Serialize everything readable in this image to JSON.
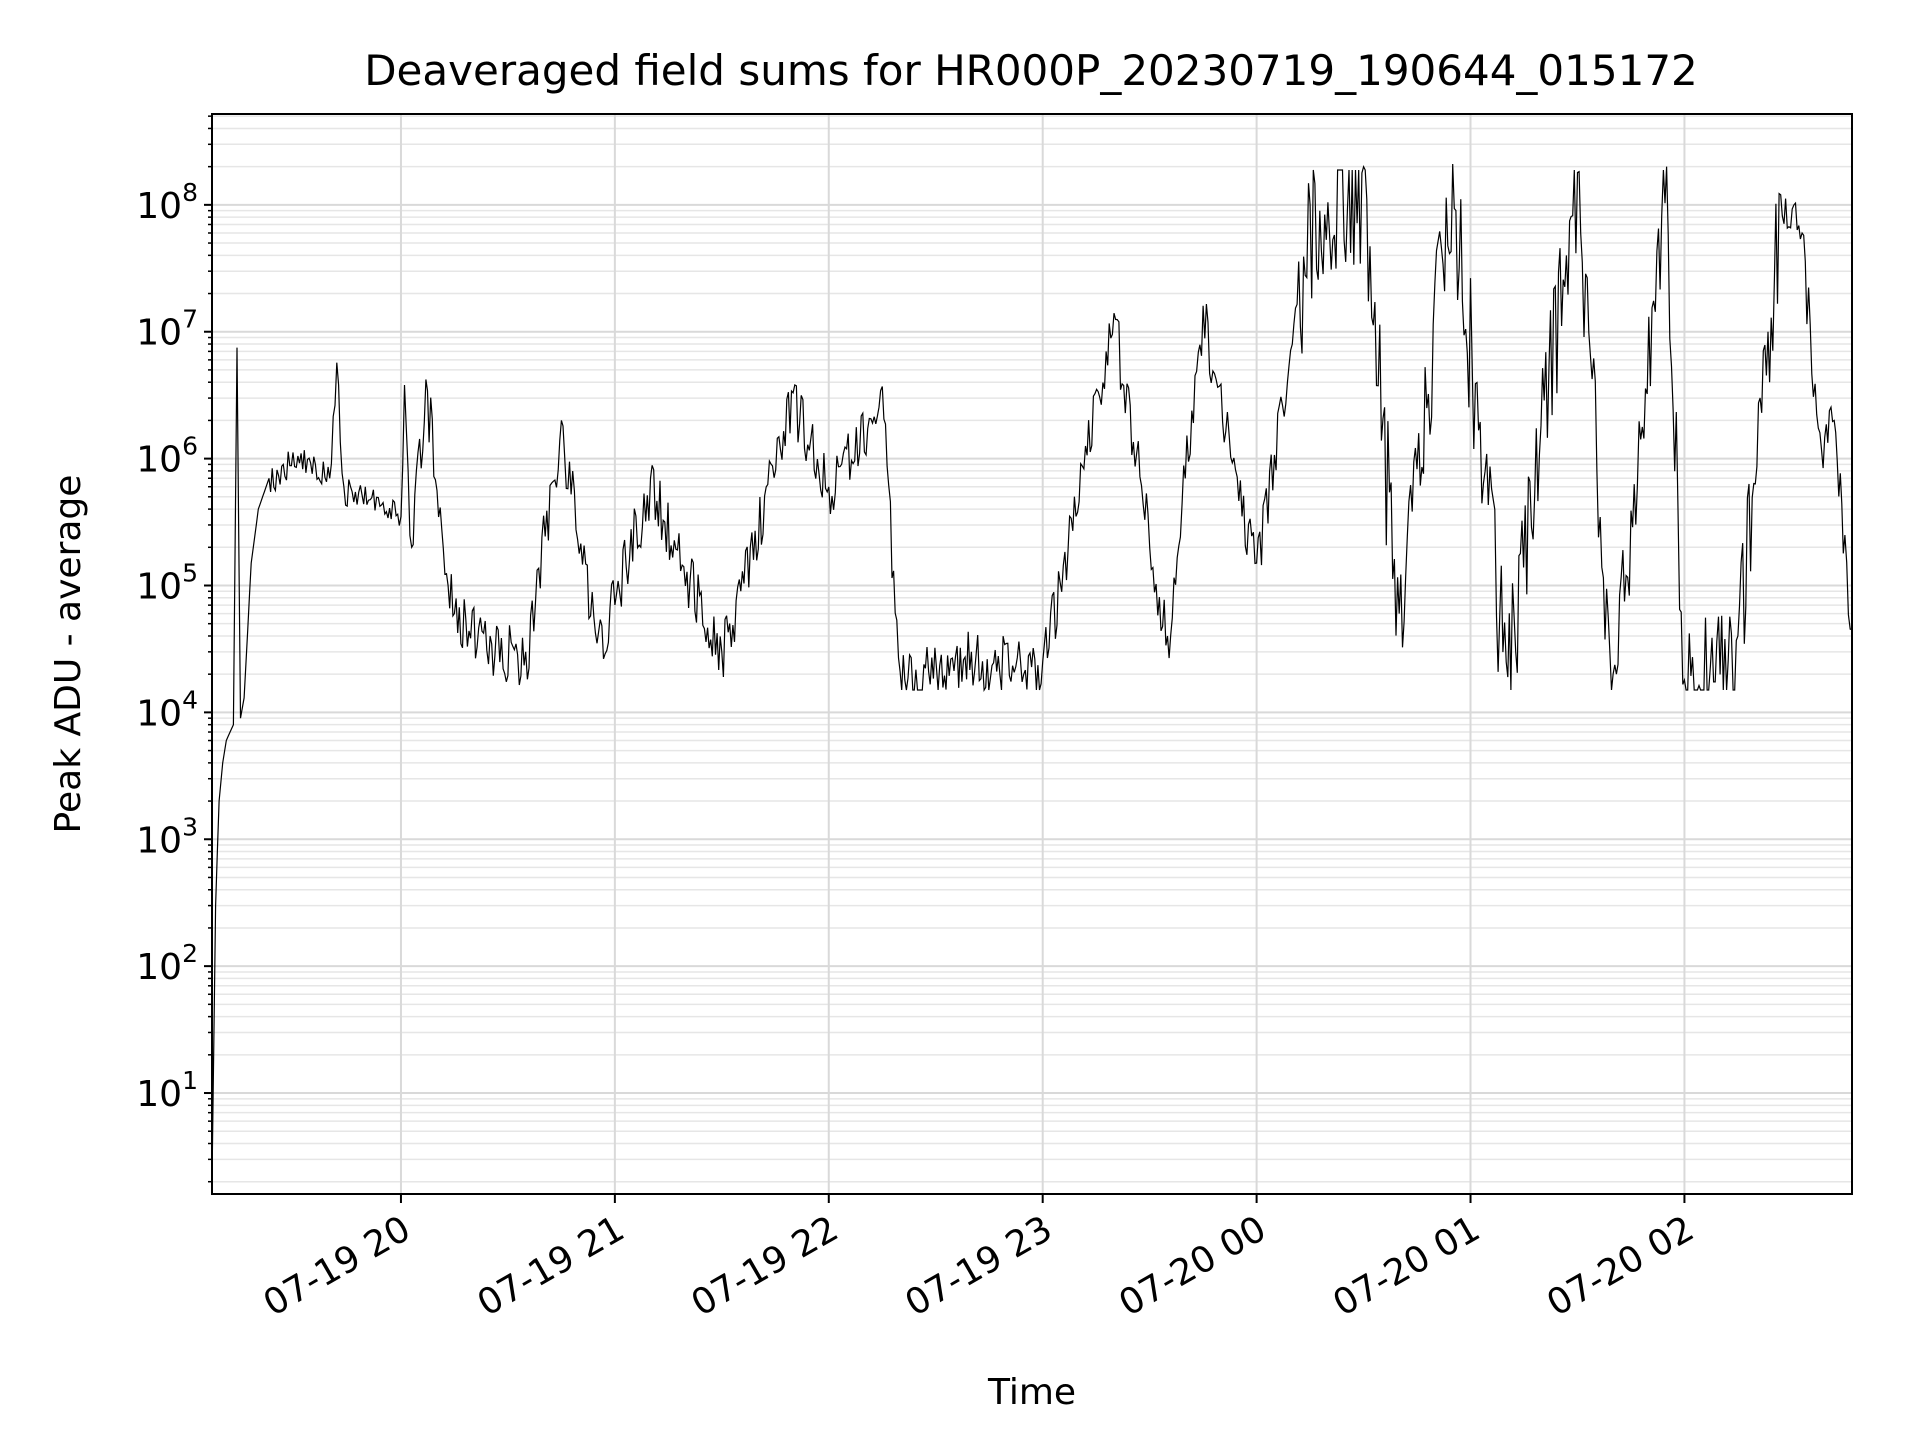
{
  "chart_data": {
    "type": "line",
    "title": "Deaveraged field sums for HR000P_20230719_190644_015172",
    "xlabel": "Time",
    "ylabel": "Peak ADU - average",
    "yscale": "log",
    "xlim": [
      "2023-07-19 19:07",
      "2023-07-20 02:47"
    ],
    "ylim": [
      1.6,
      520000000
    ],
    "grid": true,
    "x_ticks": [
      {
        "value": "2023-07-19 20:00",
        "label": "07-19 20"
      },
      {
        "value": "2023-07-19 21:00",
        "label": "07-19 21"
      },
      {
        "value": "2023-07-19 22:00",
        "label": "07-19 22"
      },
      {
        "value": "2023-07-19 23:00",
        "label": "07-19 23"
      },
      {
        "value": "2023-07-20 00:00",
        "label": "07-20 00"
      },
      {
        "value": "2023-07-20 01:00",
        "label": "07-20 01"
      },
      {
        "value": "2023-07-20 02:00",
        "label": "07-20 02"
      }
    ],
    "y_ticks": [
      {
        "value": 10,
        "base": "10",
        "exp": "1"
      },
      {
        "value": 100,
        "base": "10",
        "exp": "2"
      },
      {
        "value": 1000,
        "base": "10",
        "exp": "3"
      },
      {
        "value": 10000,
        "base": "10",
        "exp": "4"
      },
      {
        "value": 100000,
        "base": "10",
        "exp": "5"
      },
      {
        "value": 1000000,
        "base": "10",
        "exp": "6"
      },
      {
        "value": 10000000,
        "base": "10",
        "exp": "7"
      },
      {
        "value": 100000000,
        "base": "10",
        "exp": "8"
      }
    ],
    "series": [
      {
        "color": "#000000",
        "points": [
          [
            "2023-07-19 19:07",
            2
          ],
          [
            "2023-07-19 19:08",
            300
          ],
          [
            "2023-07-19 19:09",
            2000
          ],
          [
            "2023-07-19 19:10",
            4000
          ],
          [
            "2023-07-19 19:11",
            6000
          ],
          [
            "2023-07-19 19:13",
            8000
          ],
          [
            "2023-07-19 19:14",
            7500000
          ],
          [
            "2023-07-19 19:15",
            9000
          ],
          [
            "2023-07-19 19:16",
            13000
          ],
          [
            "2023-07-19 19:18",
            150000
          ],
          [
            "2023-07-19 19:20",
            400000
          ],
          [
            "2023-07-19 19:23",
            700000
          ],
          [
            "2023-07-19 19:27",
            900000
          ],
          [
            "2023-07-19 19:32",
            1100000
          ],
          [
            "2023-07-19 19:36",
            900000
          ],
          [
            "2023-07-19 19:40",
            700000
          ],
          [
            "2023-07-19 19:42",
            5700000
          ],
          [
            "2023-07-19 19:44",
            600000
          ],
          [
            "2023-07-19 19:50",
            600000
          ],
          [
            "2023-07-19 19:55",
            450000
          ],
          [
            "2023-07-19 20:00",
            350000
          ],
          [
            "2023-07-19 20:01",
            3800000
          ],
          [
            "2023-07-19 20:03",
            200000
          ],
          [
            "2023-07-19 20:07",
            4200000
          ],
          [
            "2023-07-19 20:15",
            60000
          ],
          [
            "2023-07-19 20:25",
            40000
          ],
          [
            "2023-07-19 20:35",
            30000
          ],
          [
            "2023-07-19 20:45",
            2000000
          ],
          [
            "2023-07-19 20:55",
            35000
          ],
          [
            "2023-07-19 21:10",
            700000
          ],
          [
            "2023-07-19 21:30",
            30000
          ],
          [
            "2023-07-19 21:50",
            3300000
          ],
          [
            "2023-07-19 22:00",
            600000
          ],
          [
            "2023-07-19 22:15",
            3700000
          ],
          [
            "2023-07-19 22:20",
            21000
          ],
          [
            "2023-07-19 22:40",
            30000
          ],
          [
            "2023-07-19 23:00",
            25000
          ],
          [
            "2023-07-19 23:20",
            14000000
          ],
          [
            "2023-07-19 23:35",
            40000
          ],
          [
            "2023-07-19 23:45",
            16000000
          ],
          [
            "2023-07-20 00:00",
            150000
          ],
          [
            "2023-07-20 00:15",
            100000000
          ],
          [
            "2023-07-20 00:30",
            200000000
          ],
          [
            "2023-07-20 00:40",
            60000
          ],
          [
            "2023-07-20 00:55",
            210000000
          ],
          [
            "2023-07-20 01:10",
            25000
          ],
          [
            "2023-07-20 01:30",
            180000000
          ],
          [
            "2023-07-20 01:40",
            20000
          ],
          [
            "2023-07-20 01:55",
            200000000
          ],
          [
            "2023-07-20 02:00",
            18000
          ],
          [
            "2023-07-20 02:15",
            40000
          ],
          [
            "2023-07-20 02:27",
            120000000
          ],
          [
            "2023-07-20 02:33",
            60000000
          ],
          [
            "2023-07-20 02:38",
            1600000
          ],
          [
            "2023-07-20 02:42",
            2000000
          ],
          [
            "2023-07-20 02:45",
            250000
          ],
          [
            "2023-07-20 02:47",
            45000
          ]
        ]
      }
    ]
  }
}
